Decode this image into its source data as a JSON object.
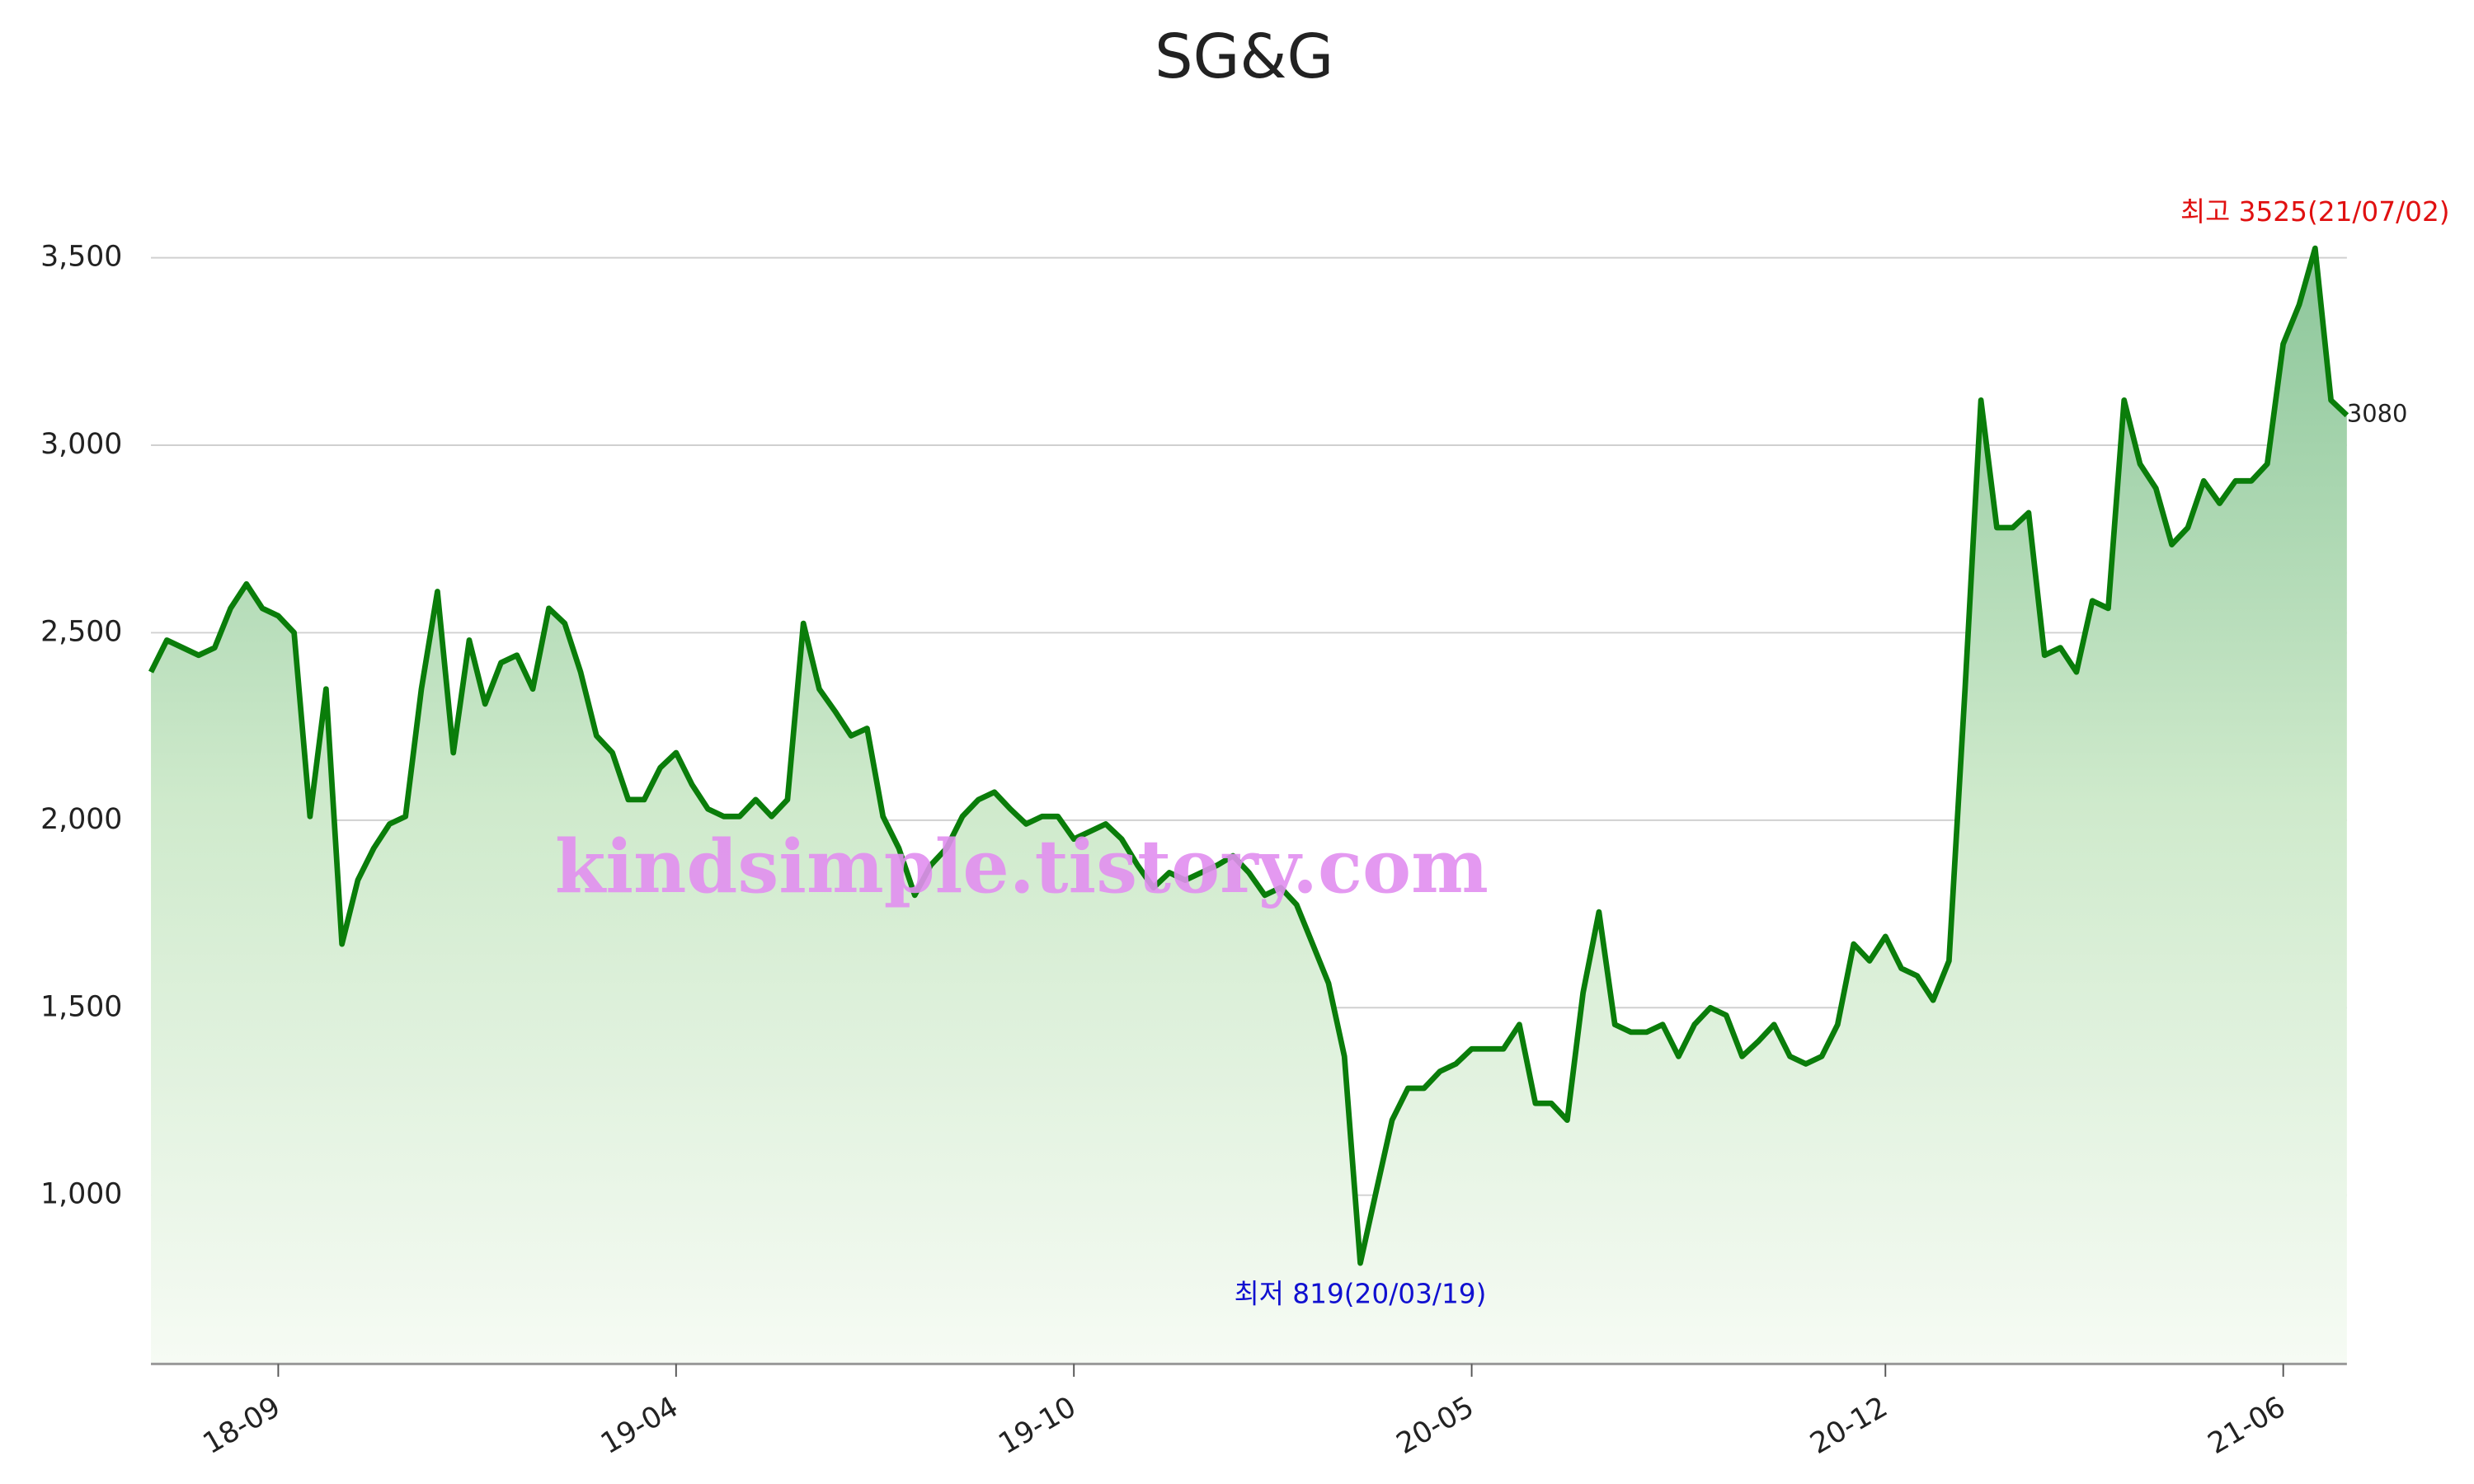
{
  "chart_data": {
    "type": "line",
    "title": "SG&G",
    "categories": [
      null,
      null,
      null,
      null,
      null,
      null,
      null,
      null,
      "18-09",
      null,
      null,
      null,
      null,
      null,
      null,
      null,
      null,
      null,
      null,
      null,
      null,
      null,
      null,
      null,
      null,
      null,
      null,
      null,
      null,
      null,
      null,
      null,
      null,
      "19-04",
      null,
      null,
      null,
      null,
      null,
      null,
      null,
      null,
      null,
      null,
      null,
      null,
      null,
      null,
      null,
      null,
      null,
      null,
      null,
      null,
      null,
      null,
      null,
      null,
      "19-10",
      null,
      null,
      null,
      null,
      null,
      null,
      null,
      null,
      null,
      null,
      null,
      null,
      null,
      null,
      null,
      null,
      null,
      null,
      null,
      null,
      null,
      null,
      null,
      null,
      "20-05",
      null,
      null,
      null,
      null,
      null,
      null,
      null,
      null,
      null,
      null,
      null,
      null,
      null,
      null,
      null,
      null,
      null,
      null,
      null,
      null,
      null,
      null,
      null,
      null,
      null,
      "20-12",
      null,
      null,
      null,
      null,
      null,
      null,
      null,
      null,
      null,
      null,
      null,
      null,
      null,
      null,
      null,
      null,
      null,
      null,
      null,
      null,
      null,
      null,
      null,
      null,
      "21-06",
      null,
      null,
      null,
      null
    ],
    "series": [
      {
        "name": "SG&G",
        "color": "#0a7d0a",
        "values": [
          2395,
          2480,
          2460,
          2440,
          2460,
          2565,
          2630,
          2565,
          2545,
          2500,
          2010,
          2350,
          1670,
          1840,
          1925,
          1990,
          2010,
          2350,
          2610,
          2180,
          2480,
          2310,
          2420,
          2440,
          2350,
          2565,
          2525,
          2395,
          2225,
          2180,
          2055,
          2055,
          2140,
          2180,
          2095,
          2030,
          2010,
          2010,
          2055,
          2010,
          2055,
          2525,
          2350,
          2290,
          2225,
          2245,
          2010,
          1925,
          1800,
          1880,
          1925,
          2010,
          2055,
          2075,
          2030,
          1990,
          2010,
          2010,
          1950,
          1970,
          1990,
          1950,
          1880,
          1820,
          1860,
          1840,
          1860,
          1880,
          1905,
          1860,
          1800,
          1820,
          1775,
          1670,
          1565,
          1370,
          819,
          1010,
          1200,
          1285,
          1285,
          1330,
          1350,
          1390,
          1390,
          1390,
          1455,
          1245,
          1245,
          1200,
          1540,
          1755,
          1455,
          1435,
          1435,
          1455,
          1370,
          1455,
          1500,
          1480,
          1370,
          1410,
          1455,
          1370,
          1350,
          1370,
          1455,
          1670,
          1625,
          1690,
          1605,
          1585,
          1520,
          1625,
          2350,
          3120,
          2780,
          2780,
          2820,
          2440,
          2460,
          2395,
          2585,
          2565,
          3120,
          2950,
          2885,
          2735,
          2780,
          2905,
          2845,
          2905,
          2905,
          2950,
          3270,
          3375,
          3525,
          3120,
          3080
        ]
      }
    ],
    "ylim": [
      550,
      3675
    ],
    "yticks": [
      {
        "value": 1000,
        "label": "1,000"
      },
      {
        "value": 1500,
        "label": "1,500"
      },
      {
        "value": 2000,
        "label": "2,000"
      },
      {
        "value": 2500,
        "label": "2,500"
      },
      {
        "value": 3000,
        "label": "3,000"
      },
      {
        "value": 3500,
        "label": "3,500"
      }
    ],
    "grid": true,
    "annotations": {
      "max": "최고 3525(21/07/02)",
      "min": "최저 819(20/03/19)",
      "last": "3080",
      "watermark": "kindsimple.tistory.com"
    }
  }
}
